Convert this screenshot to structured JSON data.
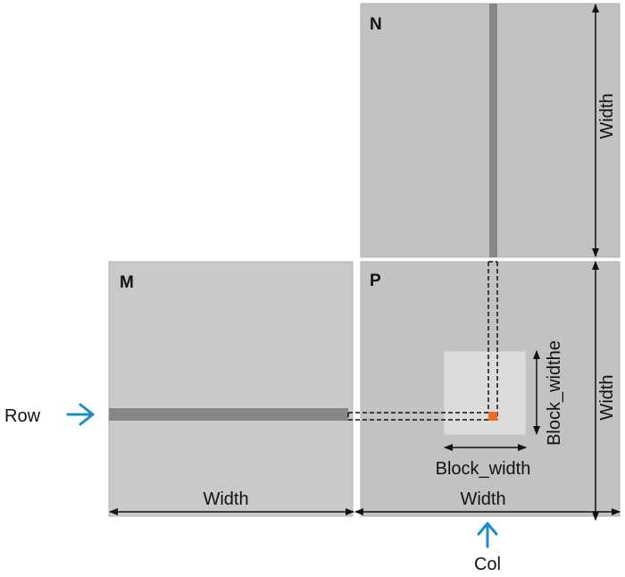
{
  "matrices": {
    "n": {
      "label": "N",
      "dim_label": "Width"
    },
    "m": {
      "label": "M",
      "dim_label": "Width"
    },
    "p": {
      "label": "P",
      "dim_label": "Width",
      "dim_label_right": "Width"
    }
  },
  "block": {
    "width_label": "Block_width",
    "height_label": "Block_widthe"
  },
  "indicators": {
    "row_label": "Row",
    "col_label": "Col"
  },
  "colors": {
    "matrix_fill": "#c1c3c3",
    "matrix_m_fill": "#c9c9c9",
    "strip_fill": "#858789",
    "block_fill": "#dcdcdc",
    "element_fill": "#f26b22",
    "arrow_accent": "#1a8ccc"
  }
}
